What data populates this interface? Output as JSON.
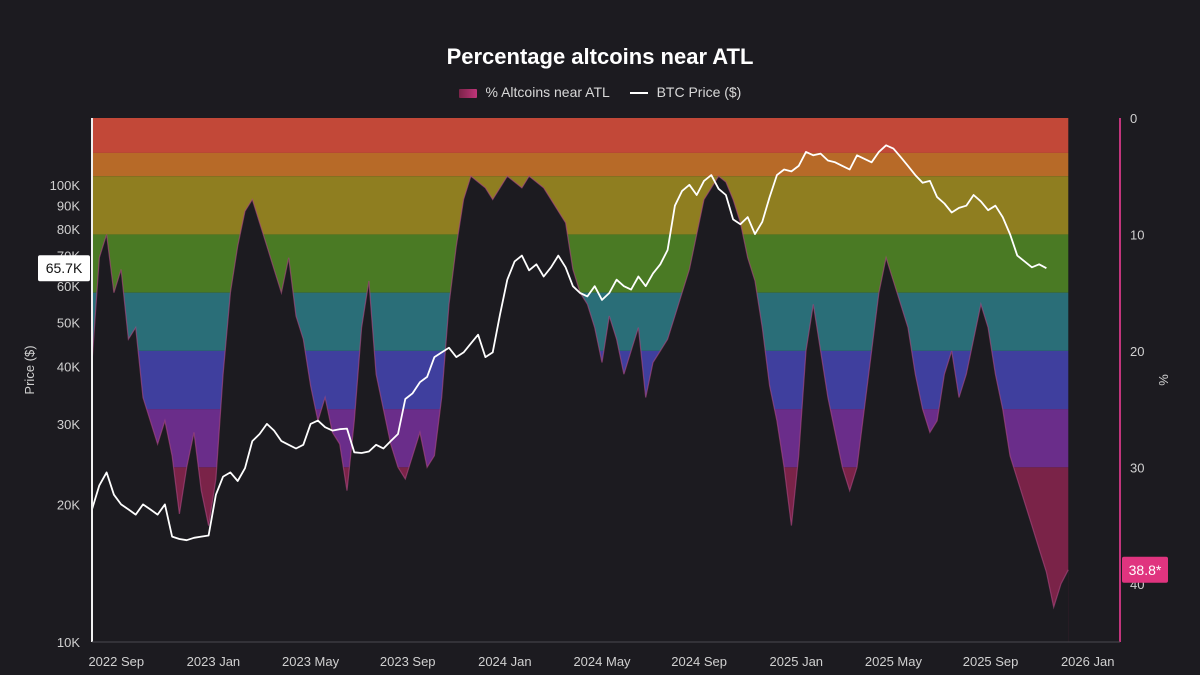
{
  "chart_data": {
    "type": "area",
    "title": "Percentage altcoins near ATL",
    "legend": [
      {
        "name": "% Altcoins near ATL",
        "color": "#c0357a"
      },
      {
        "name": "BTC Price ($)",
        "color": "#ffffff"
      }
    ],
    "left_axis": {
      "label": "Price ($)",
      "scale": "log",
      "range": [
        10000,
        140000
      ],
      "ticks": [
        {
          "value": 10000,
          "label": "10K"
        },
        {
          "value": 20000,
          "label": "20K"
        },
        {
          "value": 30000,
          "label": "30K"
        },
        {
          "value": 40000,
          "label": "40K"
        },
        {
          "value": 50000,
          "label": "50K"
        },
        {
          "value": 60000,
          "label": "60K"
        },
        {
          "value": 70000,
          "label": "70K"
        },
        {
          "value": 80000,
          "label": "80K"
        },
        {
          "value": 90000,
          "label": "90K"
        },
        {
          "value": 100000,
          "label": "100K"
        }
      ],
      "current_label": "65.7K",
      "current_value": 65700
    },
    "right_axis": {
      "label": "%",
      "inverted": true,
      "range": [
        0,
        45
      ],
      "ticks": [
        0,
        10,
        20,
        30,
        40
      ],
      "current_label": "38.8*",
      "current_value": 38.8
    },
    "x_axis": {
      "range": [
        0,
        42
      ],
      "ticks": [
        {
          "pos": 1,
          "label": "2022 Sep"
        },
        {
          "pos": 5,
          "label": "2023 Jan"
        },
        {
          "pos": 9,
          "label": "2023 May"
        },
        {
          "pos": 13,
          "label": "2023 Sep"
        },
        {
          "pos": 17,
          "label": "2024 Jan"
        },
        {
          "pos": 21,
          "label": "2024 May"
        },
        {
          "pos": 25,
          "label": "2024 Sep"
        },
        {
          "pos": 29,
          "label": "2025 Jan"
        },
        {
          "pos": 33,
          "label": "2025 May"
        },
        {
          "pos": 37,
          "label": "2025 Sep"
        },
        {
          "pos": 41,
          "label": "2026 Jan"
        }
      ]
    },
    "bands": [
      {
        "from": 0,
        "to": 3,
        "color": "#c24838"
      },
      {
        "from": 3,
        "to": 5,
        "color": "#b76a28"
      },
      {
        "from": 5,
        "to": 10,
        "color": "#8f7e20"
      },
      {
        "from": 10,
        "to": 15,
        "color": "#4a7a24"
      },
      {
        "from": 15,
        "to": 20,
        "color": "#2a6e78"
      },
      {
        "from": 20,
        "to": 25,
        "color": "#3f3f9e"
      },
      {
        "from": 25,
        "to": 30,
        "color": "#6a2d8a"
      },
      {
        "from": 30,
        "to": 45,
        "color": "#7a2348"
      }
    ],
    "altcoin_series": {
      "name": "% Altcoins near ATL",
      "points": [
        [
          0.0,
          21.0
        ],
        [
          0.3,
          12.0
        ],
        [
          0.6,
          10.0
        ],
        [
          0.9,
          15.0
        ],
        [
          1.2,
          13.0
        ],
        [
          1.5,
          19.0
        ],
        [
          1.8,
          18.0
        ],
        [
          2.1,
          24.0
        ],
        [
          2.4,
          26.0
        ],
        [
          2.7,
          28.0
        ],
        [
          3.0,
          26.0
        ],
        [
          3.3,
          29.0
        ],
        [
          3.6,
          34.0
        ],
        [
          3.9,
          30.0
        ],
        [
          4.2,
          27.0
        ],
        [
          4.5,
          32.0
        ],
        [
          4.8,
          35.0
        ],
        [
          5.1,
          31.0
        ],
        [
          5.4,
          22.0
        ],
        [
          5.7,
          15.0
        ],
        [
          6.0,
          11.0
        ],
        [
          6.3,
          8.0
        ],
        [
          6.6,
          7.0
        ],
        [
          6.9,
          9.0
        ],
        [
          7.2,
          11.0
        ],
        [
          7.5,
          13.0
        ],
        [
          7.8,
          15.0
        ],
        [
          8.1,
          12.0
        ],
        [
          8.4,
          17.0
        ],
        [
          8.7,
          19.0
        ],
        [
          9.0,
          23.0
        ],
        [
          9.3,
          26.0
        ],
        [
          9.6,
          24.0
        ],
        [
          9.9,
          27.0
        ],
        [
          10.2,
          28.0
        ],
        [
          10.5,
          32.0
        ],
        [
          10.8,
          26.0
        ],
        [
          11.1,
          18.0
        ],
        [
          11.4,
          14.0
        ],
        [
          11.7,
          22.0
        ],
        [
          12.0,
          25.0
        ],
        [
          12.3,
          28.0
        ],
        [
          12.6,
          30.0
        ],
        [
          12.9,
          31.0
        ],
        [
          13.2,
          29.0
        ],
        [
          13.5,
          27.0
        ],
        [
          13.8,
          30.0
        ],
        [
          14.1,
          29.0
        ],
        [
          14.4,
          24.0
        ],
        [
          14.7,
          16.0
        ],
        [
          15.0,
          11.0
        ],
        [
          15.3,
          7.0
        ],
        [
          15.6,
          5.0
        ],
        [
          15.9,
          5.5
        ],
        [
          16.2,
          6.0
        ],
        [
          16.5,
          7.0
        ],
        [
          16.8,
          6.0
        ],
        [
          17.1,
          5.0
        ],
        [
          17.4,
          5.5
        ],
        [
          17.7,
          6.0
        ],
        [
          18.0,
          5.0
        ],
        [
          18.3,
          5.5
        ],
        [
          18.6,
          6.0
        ],
        [
          18.9,
          7.0
        ],
        [
          19.2,
          8.0
        ],
        [
          19.5,
          9.0
        ],
        [
          19.8,
          13.0
        ],
        [
          20.1,
          15.0
        ],
        [
          20.4,
          16.0
        ],
        [
          20.7,
          18.0
        ],
        [
          21.0,
          21.0
        ],
        [
          21.3,
          17.0
        ],
        [
          21.6,
          19.0
        ],
        [
          21.9,
          22.0
        ],
        [
          22.2,
          20.0
        ],
        [
          22.5,
          18.0
        ],
        [
          22.8,
          24.0
        ],
        [
          23.1,
          21.0
        ],
        [
          23.4,
          20.0
        ],
        [
          23.7,
          19.0
        ],
        [
          24.0,
          17.0
        ],
        [
          24.3,
          15.0
        ],
        [
          24.6,
          13.0
        ],
        [
          24.9,
          10.0
        ],
        [
          25.2,
          7.0
        ],
        [
          25.5,
          6.0
        ],
        [
          25.8,
          5.0
        ],
        [
          26.1,
          5.5
        ],
        [
          26.4,
          7.0
        ],
        [
          26.7,
          9.0
        ],
        [
          27.0,
          12.0
        ],
        [
          27.3,
          14.0
        ],
        [
          27.6,
          18.0
        ],
        [
          27.9,
          23.0
        ],
        [
          28.2,
          26.0
        ],
        [
          28.5,
          30.0
        ],
        [
          28.8,
          35.0
        ],
        [
          29.1,
          29.0
        ],
        [
          29.4,
          20.0
        ],
        [
          29.7,
          16.0
        ],
        [
          30.0,
          20.0
        ],
        [
          30.3,
          24.0
        ],
        [
          30.6,
          27.0
        ],
        [
          30.9,
          30.0
        ],
        [
          31.2,
          32.0
        ],
        [
          31.5,
          30.0
        ],
        [
          31.8,
          25.0
        ],
        [
          32.1,
          20.0
        ],
        [
          32.4,
          15.0
        ],
        [
          32.7,
          12.0
        ],
        [
          33.0,
          14.0
        ],
        [
          33.3,
          16.0
        ],
        [
          33.6,
          18.0
        ],
        [
          33.9,
          22.0
        ],
        [
          34.2,
          25.0
        ],
        [
          34.5,
          27.0
        ],
        [
          34.8,
          26.0
        ],
        [
          35.1,
          22.0
        ],
        [
          35.4,
          20.0
        ],
        [
          35.7,
          24.0
        ],
        [
          36.0,
          22.0
        ],
        [
          36.3,
          19.0
        ],
        [
          36.6,
          16.0
        ],
        [
          36.9,
          18.0
        ],
        [
          37.2,
          22.0
        ],
        [
          37.5,
          25.0
        ],
        [
          37.8,
          29.0
        ],
        [
          38.1,
          31.0
        ],
        [
          38.4,
          33.0
        ],
        [
          38.7,
          35.0
        ],
        [
          39.0,
          37.0
        ],
        [
          39.3,
          39.0
        ],
        [
          39.6,
          42.0
        ],
        [
          39.9,
          40.0
        ],
        [
          40.2,
          38.8
        ]
      ]
    },
    "btc_series": {
      "name": "BTC Price ($)",
      "points": [
        [
          0.0,
          19500
        ],
        [
          0.3,
          22000
        ],
        [
          0.6,
          23500
        ],
        [
          0.9,
          21000
        ],
        [
          1.2,
          20000
        ],
        [
          1.5,
          19500
        ],
        [
          1.8,
          19000
        ],
        [
          2.1,
          20000
        ],
        [
          2.4,
          19500
        ],
        [
          2.7,
          19000
        ],
        [
          3.0,
          20000
        ],
        [
          3.3,
          17000
        ],
        [
          3.6,
          16800
        ],
        [
          3.9,
          16700
        ],
        [
          4.2,
          16900
        ],
        [
          4.5,
          17000
        ],
        [
          4.8,
          17100
        ],
        [
          5.1,
          21000
        ],
        [
          5.4,
          23000
        ],
        [
          5.7,
          23500
        ],
        [
          6.0,
          22500
        ],
        [
          6.3,
          24000
        ],
        [
          6.6,
          27500
        ],
        [
          6.9,
          28500
        ],
        [
          7.2,
          30000
        ],
        [
          7.5,
          29000
        ],
        [
          7.8,
          27500
        ],
        [
          8.1,
          27000
        ],
        [
          8.4,
          26500
        ],
        [
          8.7,
          27000
        ],
        [
          9.0,
          30000
        ],
        [
          9.3,
          30500
        ],
        [
          9.6,
          29500
        ],
        [
          9.9,
          29000
        ],
        [
          10.2,
          29200
        ],
        [
          10.5,
          29300
        ],
        [
          10.8,
          26000
        ],
        [
          11.1,
          25900
        ],
        [
          11.4,
          26100
        ],
        [
          11.7,
          27000
        ],
        [
          12.0,
          26500
        ],
        [
          12.3,
          27500
        ],
        [
          12.6,
          28500
        ],
        [
          12.9,
          34000
        ],
        [
          13.2,
          35000
        ],
        [
          13.5,
          37000
        ],
        [
          13.8,
          38000
        ],
        [
          14.1,
          42000
        ],
        [
          14.4,
          43000
        ],
        [
          14.7,
          44000
        ],
        [
          15.0,
          42000
        ],
        [
          15.3,
          43000
        ],
        [
          15.6,
          45000
        ],
        [
          15.9,
          47000
        ],
        [
          16.2,
          42000
        ],
        [
          16.5,
          43000
        ],
        [
          16.8,
          52000
        ],
        [
          17.1,
          62000
        ],
        [
          17.4,
          68000
        ],
        [
          17.7,
          70000
        ],
        [
          18.0,
          65000
        ],
        [
          18.3,
          67000
        ],
        [
          18.6,
          63000
        ],
        [
          18.9,
          66000
        ],
        [
          19.2,
          70000
        ],
        [
          19.5,
          66000
        ],
        [
          19.8,
          60000
        ],
        [
          20.1,
          58000
        ],
        [
          20.4,
          57000
        ],
        [
          20.7,
          60000
        ],
        [
          21.0,
          56000
        ],
        [
          21.3,
          58000
        ],
        [
          21.6,
          62000
        ],
        [
          21.9,
          60000
        ],
        [
          22.2,
          59000
        ],
        [
          22.5,
          63000
        ],
        [
          22.8,
          60000
        ],
        [
          23.1,
          64000
        ],
        [
          23.4,
          67000
        ],
        [
          23.7,
          72000
        ],
        [
          24.0,
          90000
        ],
        [
          24.3,
          97000
        ],
        [
          24.6,
          100000
        ],
        [
          24.9,
          95000
        ],
        [
          25.2,
          102000
        ],
        [
          25.5,
          105000
        ],
        [
          25.8,
          98000
        ],
        [
          26.1,
          95000
        ],
        [
          26.4,
          84000
        ],
        [
          26.7,
          82000
        ],
        [
          27.0,
          85000
        ],
        [
          27.3,
          78000
        ],
        [
          27.6,
          83000
        ],
        [
          27.9,
          94000
        ],
        [
          28.2,
          105000
        ],
        [
          28.5,
          108000
        ],
        [
          28.8,
          107000
        ],
        [
          29.1,
          110000
        ],
        [
          29.4,
          118000
        ],
        [
          29.7,
          116000
        ],
        [
          30.0,
          117000
        ],
        [
          30.3,
          113000
        ],
        [
          30.6,
          112000
        ],
        [
          30.9,
          110000
        ],
        [
          31.2,
          108000
        ],
        [
          31.5,
          116000
        ],
        [
          31.8,
          114000
        ],
        [
          32.1,
          112000
        ],
        [
          32.4,
          118000
        ],
        [
          32.7,
          122000
        ],
        [
          33.0,
          120000
        ],
        [
          33.3,
          115000
        ],
        [
          33.6,
          110000
        ],
        [
          33.9,
          105000
        ],
        [
          34.2,
          101000
        ],
        [
          34.5,
          102000
        ],
        [
          34.8,
          94000
        ],
        [
          35.1,
          91000
        ],
        [
          35.4,
          87000
        ],
        [
          35.7,
          89000
        ],
        [
          36.0,
          90000
        ],
        [
          36.3,
          95000
        ],
        [
          36.6,
          92000
        ],
        [
          36.9,
          88000
        ],
        [
          37.2,
          90000
        ],
        [
          37.5,
          85000
        ],
        [
          37.8,
          78000
        ],
        [
          38.1,
          70000
        ],
        [
          38.4,
          68000
        ],
        [
          38.7,
          66000
        ],
        [
          39.0,
          67000
        ],
        [
          39.3,
          65700
        ]
      ]
    }
  }
}
